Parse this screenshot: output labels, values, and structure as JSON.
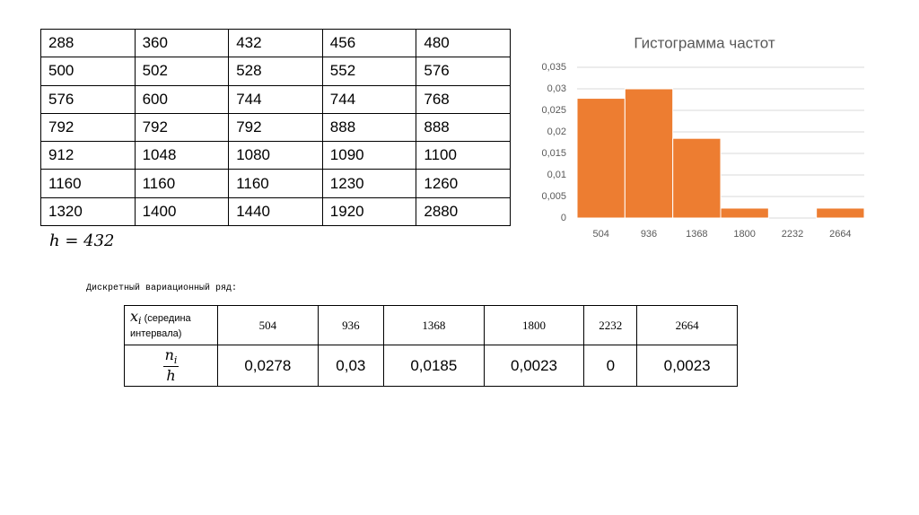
{
  "data_table": {
    "rows": [
      [
        288,
        360,
        432,
        456,
        480
      ],
      [
        500,
        502,
        528,
        552,
        576
      ],
      [
        576,
        600,
        744,
        744,
        768
      ],
      [
        792,
        792,
        792,
        888,
        888
      ],
      [
        912,
        1048,
        1080,
        1090,
        1100
      ],
      [
        1160,
        1160,
        1160,
        1230,
        1260
      ],
      [
        1320,
        1400,
        1440,
        1920,
        2880
      ]
    ]
  },
  "formula": "h = 432",
  "caption": "Дискретный вариационный ряд:",
  "variation_table": {
    "x_symbol": "x",
    "x_index": "i",
    "x_note": "(середина интервала)",
    "n_symbol": "n",
    "n_index": "i",
    "h_symbol": "h",
    "x_values": [
      504,
      936,
      1368,
      1800,
      2232,
      2664
    ],
    "frequencies": [
      "0,0278",
      "0,03",
      "0,0185",
      "0,0023",
      "0",
      "0,0023"
    ]
  },
  "chart_data": {
    "type": "bar",
    "title": "Гистограмма частот",
    "categories": [
      504,
      936,
      1368,
      1800,
      2232,
      2664
    ],
    "values": [
      0.0278,
      0.03,
      0.0185,
      0.0023,
      0,
      0.0023
    ],
    "color": "#ed7d31",
    "ylim": [
      0,
      0.035
    ],
    "yticks": [
      0,
      {
        "value": 0.005,
        "label": "0,005"
      },
      {
        "value": 0.01,
        "label": "0,01"
      },
      {
        "value": 0.015,
        "label": "0,015"
      },
      {
        "value": 0.02,
        "label": "0,02"
      },
      {
        "value": 0.025,
        "label": "0,025"
      },
      {
        "value": 0.03,
        "label": "0,03"
      },
      {
        "value": 0.035,
        "label": "0,035"
      }
    ],
    "grid": true
  }
}
